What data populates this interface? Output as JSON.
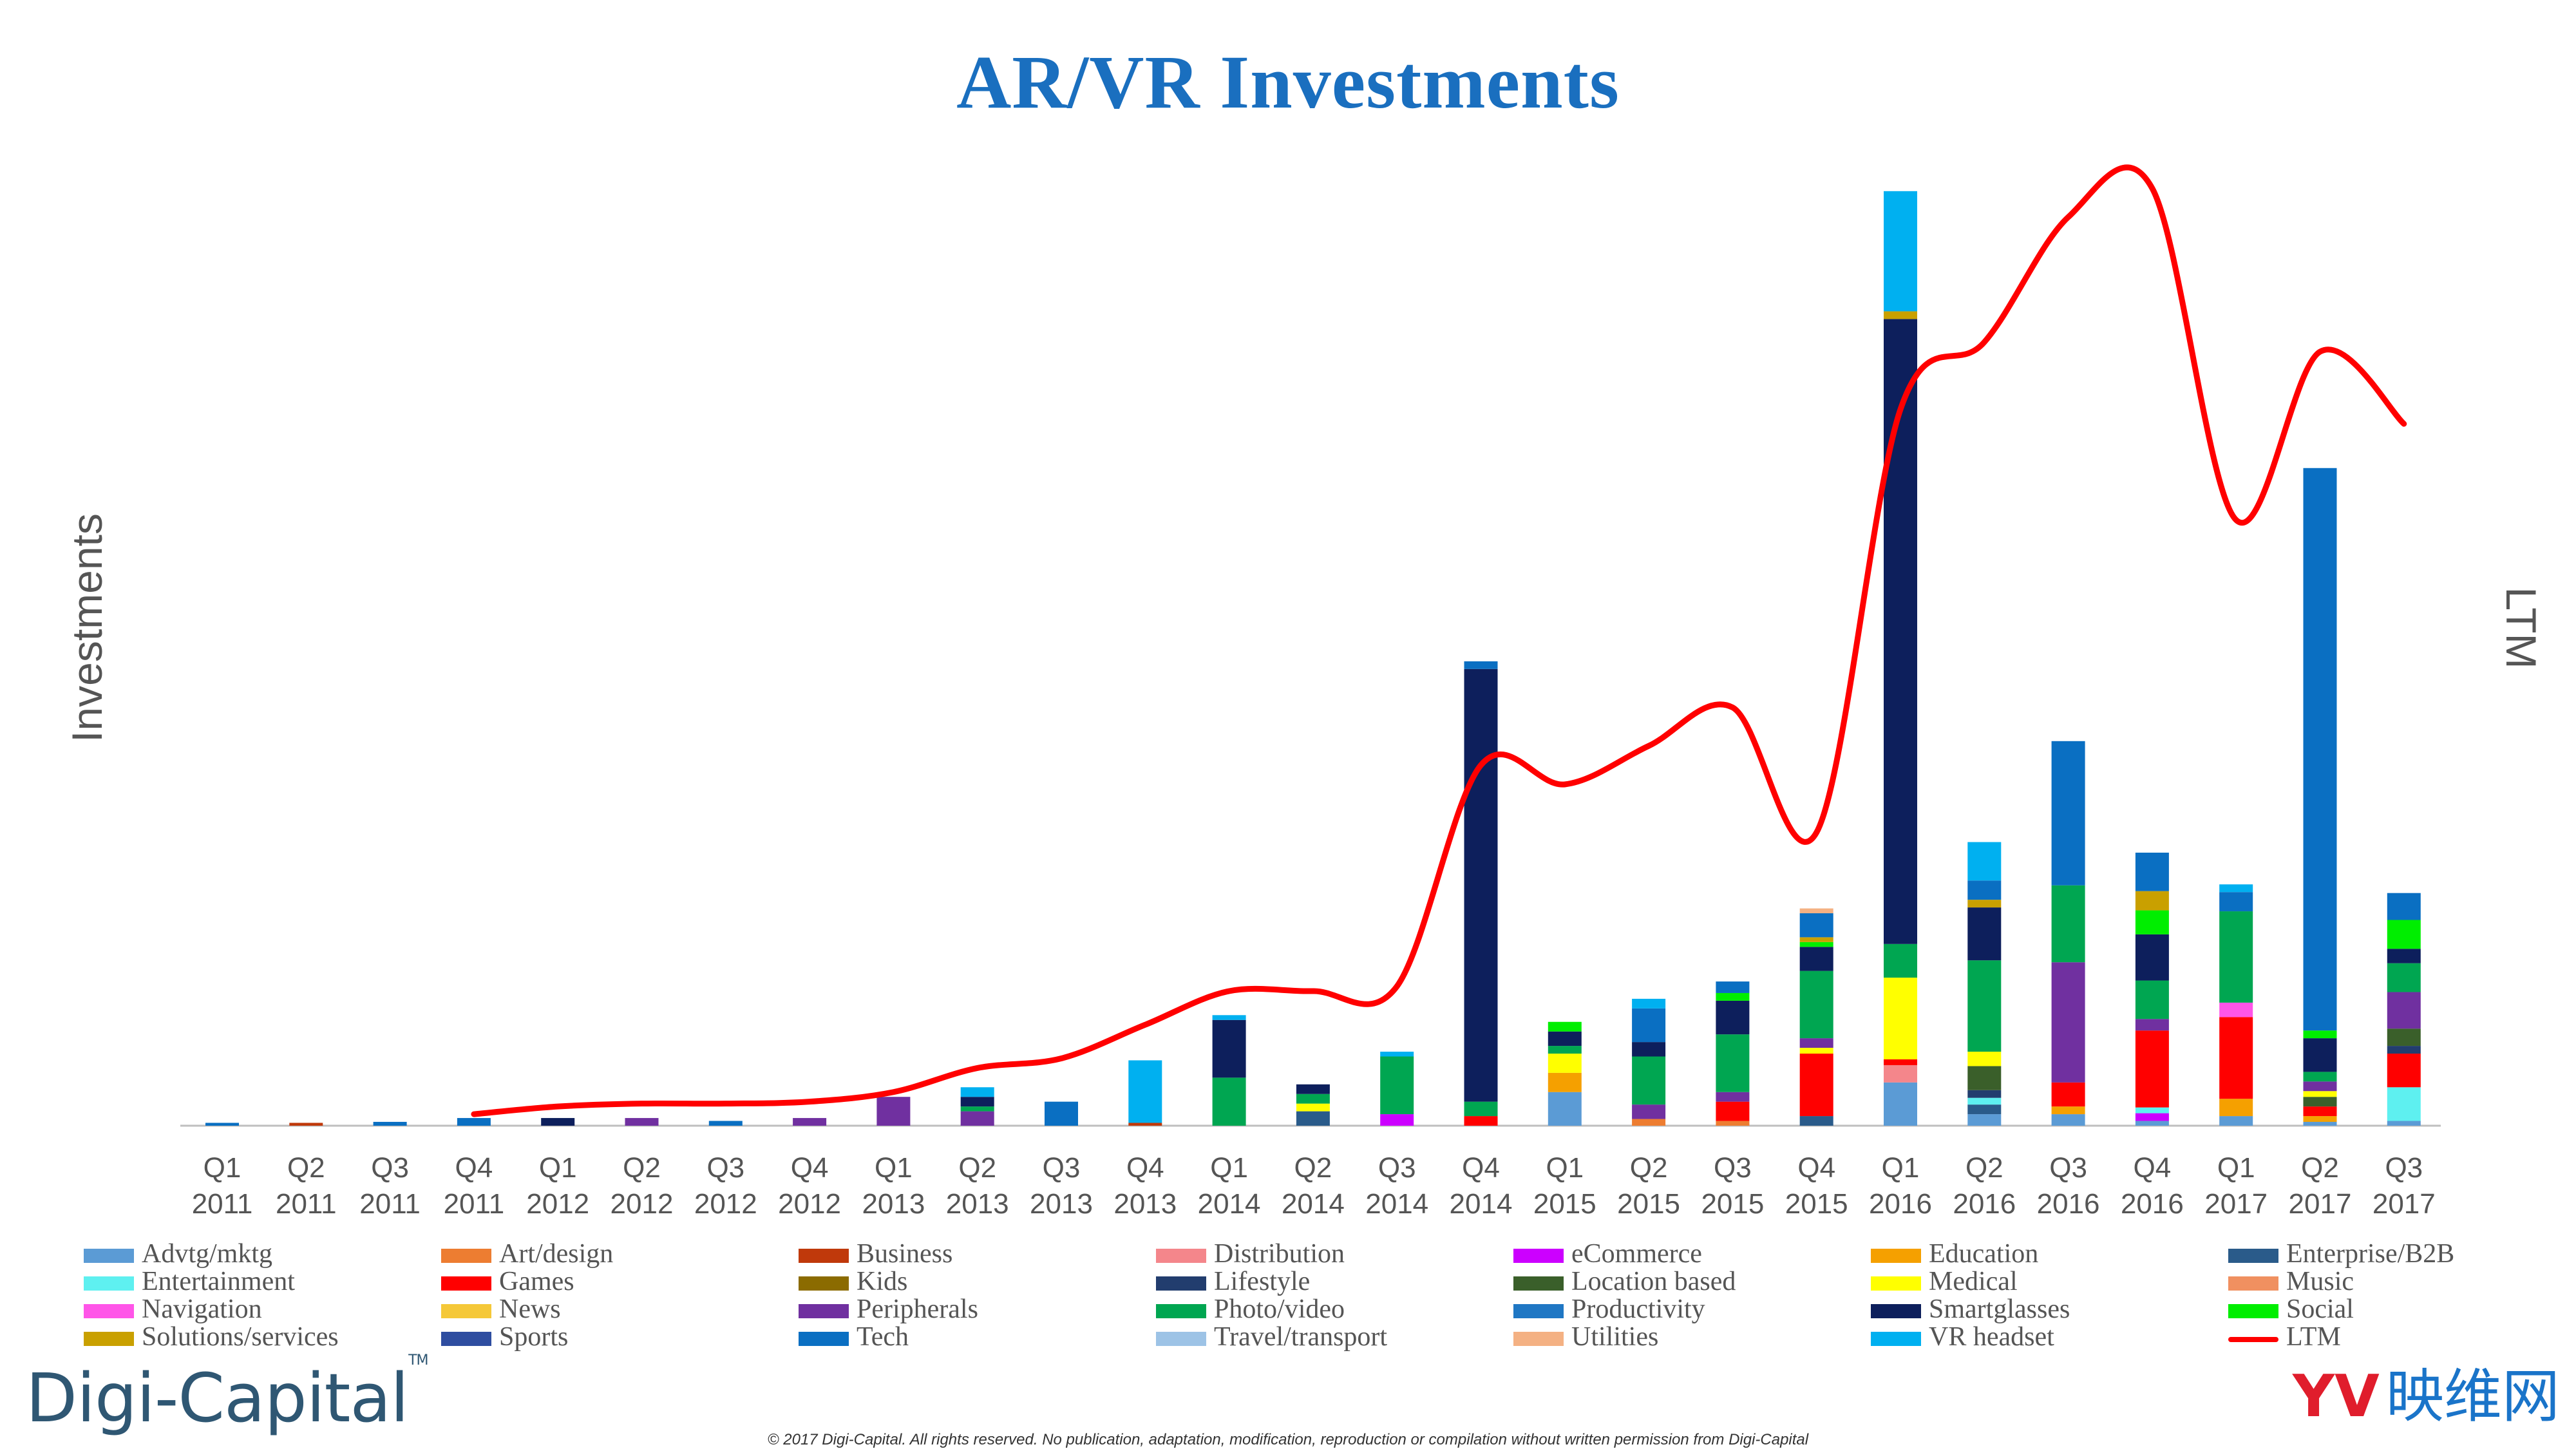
{
  "chart_data": {
    "type": "bar",
    "stacked": true,
    "title": "AR/VR Investments",
    "ylabel": "Investments",
    "y2label": "LTM",
    "ylim": [
      0,
      1000
    ],
    "y2lim": [
      0,
      1000
    ],
    "categories": [
      [
        "Q1",
        "2011"
      ],
      [
        "Q2",
        "2011"
      ],
      [
        "Q3",
        "2011"
      ],
      [
        "Q4",
        "2011"
      ],
      [
        "Q1",
        "2012"
      ],
      [
        "Q2",
        "2012"
      ],
      [
        "Q3",
        "2012"
      ],
      [
        "Q4",
        "2012"
      ],
      [
        "Q1",
        "2013"
      ],
      [
        "Q2",
        "2013"
      ],
      [
        "Q3",
        "2013"
      ],
      [
        "Q4",
        "2013"
      ],
      [
        "Q1",
        "2014"
      ],
      [
        "Q2",
        "2014"
      ],
      [
        "Q3",
        "2014"
      ],
      [
        "Q4",
        "2014"
      ],
      [
        "Q1",
        "2015"
      ],
      [
        "Q2",
        "2015"
      ],
      [
        "Q3",
        "2015"
      ],
      [
        "Q4",
        "2015"
      ],
      [
        "Q1",
        "2016"
      ],
      [
        "Q2",
        "2016"
      ],
      [
        "Q3",
        "2016"
      ],
      [
        "Q4",
        "2016"
      ],
      [
        "Q1",
        "2017"
      ],
      [
        "Q2",
        "2017"
      ],
      [
        "Q3",
        "2017"
      ]
    ],
    "series": [
      {
        "name": "Advtg/mktg",
        "color": "#5b9bd5",
        "values": [
          0,
          0,
          0,
          0,
          0,
          0,
          0,
          0,
          0,
          0,
          0,
          0,
          0,
          0,
          0,
          0,
          35,
          0,
          0,
          0,
          45,
          12,
          12,
          5,
          10,
          4,
          5
        ]
      },
      {
        "name": "Art/design",
        "color": "#ed7d31",
        "values": [
          0,
          0,
          0,
          0,
          0,
          0,
          0,
          0,
          0,
          0,
          0,
          0,
          0,
          0,
          0,
          0,
          0,
          7,
          5,
          0,
          0,
          0,
          0,
          0,
          0,
          0,
          0
        ]
      },
      {
        "name": "Business",
        "color": "#c0390b",
        "values": [
          0,
          3,
          0,
          0,
          0,
          0,
          0,
          0,
          0,
          0,
          0,
          3,
          0,
          0,
          0,
          0,
          0,
          0,
          0,
          0,
          0,
          0,
          0,
          0,
          0,
          0,
          0
        ]
      },
      {
        "name": "Distribution",
        "color": "#f4868b",
        "values": [
          0,
          0,
          0,
          0,
          0,
          0,
          0,
          0,
          0,
          0,
          0,
          0,
          0,
          0,
          0,
          0,
          0,
          0,
          0,
          0,
          18,
          0,
          0,
          0,
          0,
          0,
          0
        ]
      },
      {
        "name": "eCommerce",
        "color": "#cc00ff",
        "values": [
          0,
          0,
          0,
          0,
          0,
          0,
          0,
          0,
          0,
          0,
          0,
          0,
          0,
          0,
          12,
          0,
          0,
          0,
          0,
          0,
          0,
          0,
          0,
          8,
          0,
          0,
          0
        ]
      },
      {
        "name": "Education",
        "color": "#f5a000",
        "values": [
          0,
          0,
          0,
          0,
          0,
          0,
          0,
          0,
          0,
          0,
          0,
          0,
          0,
          0,
          0,
          0,
          20,
          0,
          0,
          0,
          0,
          0,
          8,
          0,
          18,
          6,
          0
        ]
      },
      {
        "name": "Enterprise/B2B",
        "color": "#2a5b8a",
        "values": [
          0,
          0,
          0,
          0,
          0,
          0,
          0,
          0,
          0,
          0,
          0,
          0,
          0,
          15,
          0,
          0,
          0,
          0,
          0,
          10,
          0,
          10,
          0,
          0,
          0,
          0,
          0
        ]
      },
      {
        "name": "Entertainment",
        "color": "#5ef0f0",
        "values": [
          0,
          0,
          0,
          0,
          0,
          0,
          0,
          0,
          0,
          0,
          0,
          0,
          0,
          0,
          0,
          0,
          0,
          0,
          0,
          0,
          0,
          7,
          0,
          6,
          0,
          0,
          35
        ]
      },
      {
        "name": "Games",
        "color": "#ff0000",
        "values": [
          0,
          0,
          0,
          0,
          0,
          0,
          0,
          0,
          0,
          0,
          0,
          0,
          0,
          0,
          0,
          10,
          0,
          0,
          20,
          65,
          6,
          0,
          25,
          80,
          85,
          10,
          35
        ]
      },
      {
        "name": "Kids",
        "color": "#8b6b00",
        "values": [
          0,
          0,
          0,
          0,
          0,
          0,
          0,
          0,
          0,
          0,
          0,
          0,
          0,
          0,
          0,
          0,
          0,
          0,
          0,
          0,
          0,
          0,
          0,
          0,
          0,
          0,
          0
        ]
      },
      {
        "name": "Lifestyle",
        "color": "#223d6e",
        "values": [
          0,
          0,
          0,
          0,
          0,
          0,
          0,
          0,
          0,
          0,
          0,
          0,
          0,
          0,
          0,
          0,
          0,
          0,
          0,
          0,
          0,
          8,
          0,
          0,
          0,
          0,
          8
        ]
      },
      {
        "name": "Location based",
        "color": "#3a5f2a",
        "values": [
          0,
          0,
          0,
          0,
          0,
          0,
          0,
          0,
          0,
          0,
          0,
          0,
          0,
          0,
          0,
          0,
          0,
          0,
          0,
          0,
          0,
          25,
          0,
          0,
          0,
          10,
          18
        ]
      },
      {
        "name": "Medical",
        "color": "#ffff00",
        "values": [
          0,
          0,
          0,
          0,
          0,
          0,
          0,
          0,
          0,
          0,
          0,
          0,
          0,
          8,
          0,
          0,
          20,
          0,
          0,
          6,
          85,
          15,
          0,
          0,
          0,
          6,
          0
        ]
      },
      {
        "name": "Music",
        "color": "#f09060",
        "values": [
          0,
          0,
          0,
          0,
          0,
          0,
          0,
          0,
          0,
          0,
          0,
          0,
          0,
          0,
          0,
          0,
          0,
          0,
          0,
          0,
          0,
          0,
          0,
          0,
          0,
          0,
          0
        ]
      },
      {
        "name": "Navigation",
        "color": "#ff55e8",
        "values": [
          0,
          0,
          0,
          0,
          0,
          0,
          0,
          0,
          0,
          0,
          0,
          0,
          0,
          0,
          0,
          0,
          0,
          0,
          0,
          0,
          0,
          0,
          0,
          0,
          15,
          0,
          0
        ]
      },
      {
        "name": "News",
        "color": "#f5c838",
        "values": [
          0,
          0,
          0,
          0,
          0,
          0,
          0,
          0,
          0,
          0,
          0,
          0,
          0,
          0,
          0,
          0,
          0,
          0,
          0,
          0,
          0,
          0,
          0,
          0,
          0,
          0,
          0
        ]
      },
      {
        "name": "Peripherals",
        "color": "#7030a0",
        "values": [
          0,
          0,
          0,
          0,
          0,
          8,
          0,
          8,
          30,
          15,
          0,
          0,
          0,
          0,
          0,
          0,
          0,
          15,
          10,
          10,
          0,
          0,
          125,
          12,
          0,
          10,
          38
        ]
      },
      {
        "name": "Photo/video",
        "color": "#00a651",
        "values": [
          0,
          0,
          0,
          0,
          0,
          0,
          0,
          0,
          0,
          5,
          0,
          0,
          50,
          10,
          60,
          15,
          8,
          50,
          60,
          70,
          35,
          95,
          80,
          40,
          95,
          10,
          30
        ]
      },
      {
        "name": "Productivity",
        "color": "#1f77c4",
        "values": [
          0,
          0,
          0,
          0,
          0,
          0,
          0,
          0,
          0,
          0,
          0,
          0,
          0,
          0,
          0,
          0,
          0,
          0,
          0,
          0,
          0,
          0,
          0,
          0,
          0,
          0,
          0
        ]
      },
      {
        "name": "Smartglasses",
        "color": "#0d1f5c",
        "values": [
          0,
          0,
          0,
          0,
          8,
          0,
          0,
          0,
          0,
          10,
          0,
          0,
          60,
          10,
          0,
          450,
          15,
          15,
          35,
          25,
          650,
          55,
          0,
          48,
          0,
          35,
          15
        ]
      },
      {
        "name": "Social",
        "color": "#00ee00",
        "values": [
          0,
          0,
          0,
          0,
          0,
          0,
          0,
          0,
          0,
          0,
          0,
          0,
          0,
          0,
          0,
          0,
          10,
          0,
          8,
          5,
          0,
          0,
          0,
          25,
          0,
          8,
          30
        ]
      },
      {
        "name": "Solutions/services",
        "color": "#c9a000",
        "values": [
          0,
          0,
          0,
          0,
          0,
          0,
          0,
          0,
          0,
          0,
          0,
          0,
          0,
          0,
          0,
          0,
          0,
          0,
          0,
          5,
          8,
          8,
          0,
          20,
          0,
          0,
          0
        ]
      },
      {
        "name": "Sports",
        "color": "#2e4da0",
        "values": [
          0,
          0,
          0,
          0,
          0,
          0,
          0,
          0,
          0,
          0,
          0,
          0,
          0,
          0,
          0,
          0,
          0,
          0,
          0,
          0,
          0,
          0,
          0,
          0,
          0,
          0,
          0
        ]
      },
      {
        "name": "Tech",
        "color": "#0a6fc2",
        "values": [
          3,
          0,
          4,
          8,
          0,
          0,
          5,
          0,
          0,
          0,
          25,
          0,
          0,
          0,
          0,
          8,
          0,
          35,
          12,
          25,
          0,
          20,
          150,
          40,
          20,
          585,
          28
        ]
      },
      {
        "name": "Travel/transport",
        "color": "#9dc3e6",
        "values": [
          0,
          0,
          0,
          0,
          0,
          0,
          0,
          0,
          0,
          0,
          0,
          0,
          0,
          0,
          0,
          0,
          0,
          0,
          0,
          0,
          0,
          0,
          0,
          0,
          0,
          0,
          0
        ]
      },
      {
        "name": "Utilities",
        "color": "#f4b183",
        "values": [
          0,
          0,
          0,
          0,
          0,
          0,
          0,
          0,
          0,
          0,
          0,
          0,
          0,
          0,
          0,
          0,
          0,
          0,
          0,
          5,
          0,
          0,
          0,
          0,
          0,
          0,
          0
        ]
      },
      {
        "name": "VR headset",
        "color": "#00b0f0",
        "values": [
          0,
          0,
          0,
          0,
          0,
          0,
          0,
          0,
          0,
          10,
          0,
          65,
          5,
          0,
          5,
          0,
          0,
          10,
          0,
          0,
          125,
          40,
          0,
          0,
          8,
          0,
          0
        ]
      }
    ],
    "line": {
      "name": "LTM",
      "color": "#ff0000",
      "start_index": 3,
      "values": [
        null,
        null,
        null,
        12,
        20,
        23,
        23,
        25,
        35,
        60,
        70,
        105,
        140,
        140,
        145,
        375,
        355,
        395,
        435,
        305,
        745,
        815,
        945,
        975,
        630,
        805,
        730
      ]
    },
    "legend_position": "bottom",
    "grid": false
  },
  "footer": {
    "logo": "Digi-Capital",
    "logo_tm": "TM",
    "copyright": "© 2017 Digi-Capital. All rights reserved.  No publication, adaptation, modification, reproduction or compilation without written permission from Digi-Capital",
    "watermark_mark": "YV",
    "watermark_text": "映维网"
  }
}
